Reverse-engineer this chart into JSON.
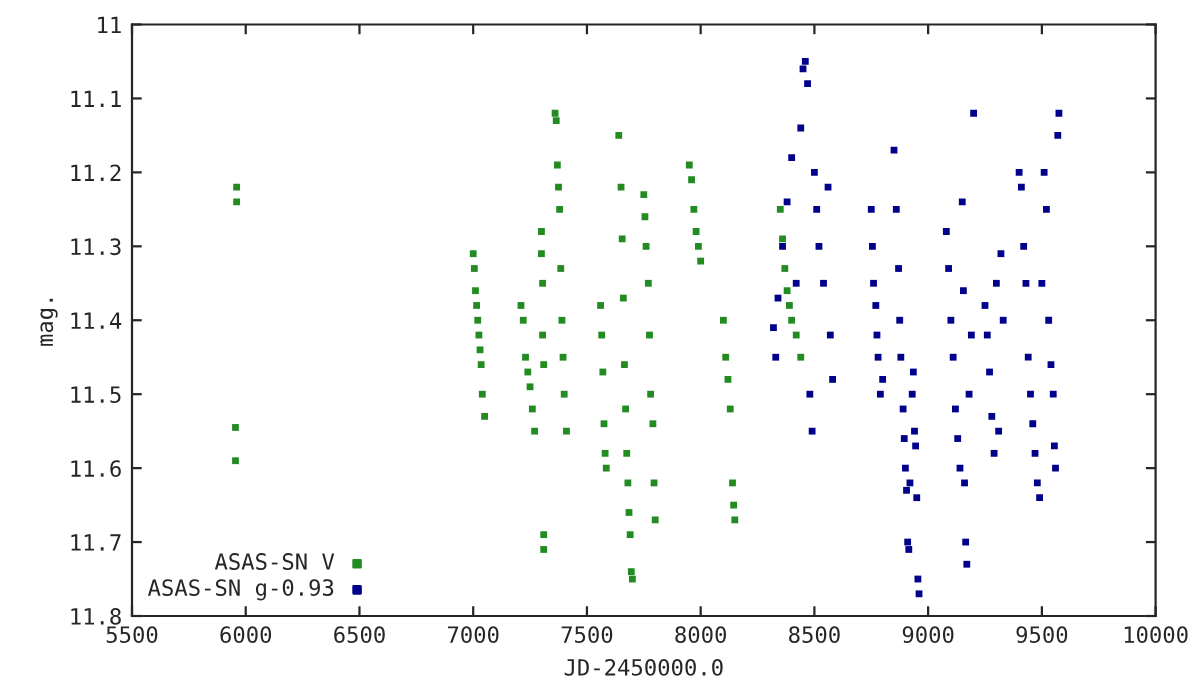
{
  "chart_data": {
    "type": "scatter",
    "xlabel": "JD-2450000.0",
    "ylabel": "mag.",
    "xlim": [
      5500,
      10000
    ],
    "xticks": [
      5500,
      6000,
      6500,
      7000,
      7500,
      8000,
      8500,
      9000,
      9500,
      10000
    ],
    "ylim": [
      11.8,
      11
    ],
    "yticks": [
      11,
      11.1,
      11.2,
      11.3,
      11.4,
      11.5,
      11.6,
      11.7,
      11.8
    ],
    "grid": false,
    "legend": "bottom left",
    "marker": "square",
    "series": [
      {
        "name": "ASAS-SN V",
        "color": "#228b22",
        "x": [
          5960,
          5960,
          5955,
          5955,
          7000,
          7005,
          7010,
          7015,
          7020,
          7025,
          7030,
          7035,
          7040,
          7050,
          7210,
          7220,
          7230,
          7240,
          7250,
          7260,
          7270,
          7300,
          7300,
          7305,
          7305,
          7310,
          7310,
          7310,
          7360,
          7365,
          7370,
          7375,
          7380,
          7385,
          7390,
          7395,
          7400,
          7410,
          7560,
          7565,
          7570,
          7575,
          7580,
          7585,
          7640,
          7650,
          7655,
          7660,
          7665,
          7670,
          7675,
          7680,
          7685,
          7690,
          7695,
          7700,
          7750,
          7755,
          7760,
          7770,
          7775,
          7780,
          7790,
          7795,
          7800,
          7950,
          7960,
          7970,
          7980,
          7990,
          8000,
          8100,
          8110,
          8120,
          8130,
          8140,
          8145,
          8150,
          8350,
          8360,
          8370,
          8380,
          8390,
          8400,
          8420,
          8440
        ],
        "values": [
          11.22,
          11.24,
          11.545,
          11.59,
          11.31,
          11.33,
          11.36,
          11.38,
          11.4,
          11.42,
          11.44,
          11.46,
          11.5,
          11.53,
          11.38,
          11.4,
          11.45,
          11.47,
          11.49,
          11.52,
          11.55,
          11.28,
          11.31,
          11.35,
          11.42,
          11.46,
          11.69,
          11.71,
          11.12,
          11.13,
          11.19,
          11.22,
          11.25,
          11.33,
          11.4,
          11.45,
          11.5,
          11.55,
          11.38,
          11.42,
          11.47,
          11.54,
          11.58,
          11.6,
          11.15,
          11.22,
          11.29,
          11.37,
          11.46,
          11.52,
          11.58,
          11.62,
          11.66,
          11.69,
          11.74,
          11.75,
          11.23,
          11.26,
          11.3,
          11.35,
          11.42,
          11.5,
          11.54,
          11.62,
          11.67,
          11.19,
          11.21,
          11.25,
          11.28,
          11.3,
          11.32,
          11.4,
          11.45,
          11.48,
          11.52,
          11.62,
          11.65,
          11.67,
          11.25,
          11.29,
          11.33,
          11.36,
          11.38,
          11.4,
          11.42,
          11.45
        ]
      },
      {
        "name": "ASAS-SN g-0.93",
        "color": "#00008b",
        "x": [
          8320,
          8330,
          8340,
          8360,
          8380,
          8400,
          8420,
          8440,
          8450,
          8460,
          8470,
          8480,
          8490,
          8500,
          8510,
          8520,
          8540,
          8560,
          8570,
          8580,
          8750,
          8755,
          8760,
          8770,
          8775,
          8780,
          8790,
          8800,
          8850,
          8860,
          8870,
          8875,
          8880,
          8890,
          8895,
          8900,
          8905,
          8910,
          8915,
          8920,
          8930,
          8935,
          8940,
          8945,
          8950,
          8955,
          8960,
          9080,
          9090,
          9100,
          9110,
          9120,
          9130,
          9140,
          9150,
          9155,
          9160,
          9165,
          9170,
          9180,
          9190,
          9200,
          9250,
          9260,
          9270,
          9280,
          9290,
          9300,
          9310,
          9320,
          9330,
          9400,
          9410,
          9420,
          9430,
          9440,
          9450,
          9460,
          9470,
          9480,
          9490,
          9500,
          9510,
          9520,
          9530,
          9540,
          9550,
          9555,
          9560,
          9570,
          9575
        ],
        "values": [
          11.41,
          11.45,
          11.37,
          11.3,
          11.24,
          11.18,
          11.35,
          11.14,
          11.06,
          11.05,
          11.08,
          11.5,
          11.55,
          11.2,
          11.25,
          11.3,
          11.35,
          11.22,
          11.42,
          11.48,
          11.25,
          11.3,
          11.35,
          11.38,
          11.42,
          11.45,
          11.5,
          11.48,
          11.17,
          11.25,
          11.33,
          11.4,
          11.45,
          11.52,
          11.56,
          11.6,
          11.63,
          11.7,
          11.71,
          11.62,
          11.5,
          11.47,
          11.55,
          11.57,
          11.64,
          11.75,
          11.77,
          11.28,
          11.33,
          11.4,
          11.45,
          11.52,
          11.56,
          11.6,
          11.24,
          11.36,
          11.62,
          11.7,
          11.73,
          11.5,
          11.42,
          11.12,
          11.38,
          11.42,
          11.47,
          11.53,
          11.58,
          11.35,
          11.55,
          11.31,
          11.4,
          11.2,
          11.22,
          11.3,
          11.35,
          11.45,
          11.5,
          11.54,
          11.58,
          11.62,
          11.64,
          11.35,
          11.2,
          11.25,
          11.4,
          11.46,
          11.5,
          11.57,
          11.6,
          11.15,
          11.12
        ]
      }
    ]
  }
}
